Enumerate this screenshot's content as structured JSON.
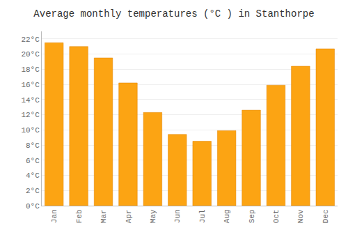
{
  "chart_data": {
    "type": "bar",
    "title": "Average monthly temperatures (°C ) in Stanthorpe",
    "categories": [
      "Jan",
      "Feb",
      "Mar",
      "Apr",
      "May",
      "Jun",
      "Jul",
      "Aug",
      "Sep",
      "Oct",
      "Nov",
      "Dec"
    ],
    "values": [
      21.5,
      21.0,
      19.5,
      16.2,
      12.3,
      9.4,
      8.5,
      9.9,
      12.6,
      15.9,
      18.4,
      20.7
    ],
    "color": "#FCA413",
    "ylim": [
      0,
      23
    ],
    "yticks": [
      {
        "value": 0,
        "label": "0°C"
      },
      {
        "value": 2,
        "label": "2°C"
      },
      {
        "value": 4,
        "label": "4°C"
      },
      {
        "value": 6,
        "label": "6°C"
      },
      {
        "value": 8,
        "label": "8°C"
      },
      {
        "value": 10,
        "label": "10°C"
      },
      {
        "value": 12,
        "label": "12°C"
      },
      {
        "value": 14,
        "label": "14°C"
      },
      {
        "value": 16,
        "label": "16°C"
      },
      {
        "value": 18,
        "label": "18°C"
      },
      {
        "value": 20,
        "label": "20°C"
      },
      {
        "value": 22,
        "label": "22°C"
      }
    ],
    "grid": true
  }
}
